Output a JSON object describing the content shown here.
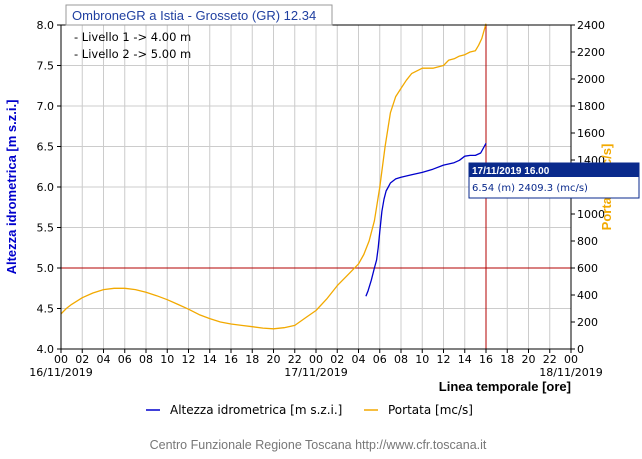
{
  "chart_data": {
    "type": "line",
    "title": "OmbroneGR a Istia - Grosseto (GR) 12.34",
    "annotations": [
      "- Livello 1 -> 4.00 m",
      "- Livello 2 -> 5.00 m"
    ],
    "xlabel": "Linea temporale [ore]",
    "ylabel": "Altezza idrometrica [m s.z.i.]",
    "ylabel_right": "Portata [mc/s]",
    "xlim": [
      0,
      48
    ],
    "ylim": [
      4.0,
      8.0
    ],
    "ylim_right": [
      0,
      2400
    ],
    "x_tick_labels": [
      "00",
      "02",
      "04",
      "06",
      "08",
      "10",
      "12",
      "14",
      "16",
      "18",
      "20",
      "22",
      "00",
      "02",
      "04",
      "06",
      "08",
      "10",
      "12",
      "14",
      "16",
      "18",
      "20",
      "22",
      "00"
    ],
    "date_labels": [
      {
        "x": 0,
        "text": "16/11/2019"
      },
      {
        "x": 24,
        "text": "17/11/2019"
      },
      {
        "x": 48,
        "text": "18/11/2019"
      }
    ],
    "y_ticks": [
      4.0,
      4.5,
      5.0,
      5.5,
      6.0,
      6.5,
      7.0,
      7.5,
      8.0
    ],
    "y_ticks_right": [
      0,
      200,
      400,
      600,
      800,
      1000,
      1200,
      1400,
      1600,
      1800,
      2000,
      2200,
      2400
    ],
    "grid": true,
    "reference_line_y": 5.0,
    "cursor_x": 40,
    "series": [
      {
        "name": "Altezza idrometrica [m s.z.i.]",
        "color": "#0000cc",
        "axis": "left",
        "points": [
          [
            28.7,
            4.65
          ],
          [
            28.9,
            4.72
          ],
          [
            29.2,
            4.85
          ],
          [
            29.5,
            5.0
          ],
          [
            29.7,
            5.1
          ],
          [
            29.85,
            5.25
          ],
          [
            30.0,
            5.45
          ],
          [
            30.2,
            5.7
          ],
          [
            30.4,
            5.85
          ],
          [
            30.6,
            5.95
          ],
          [
            30.8,
            6.0
          ],
          [
            31.0,
            6.05
          ],
          [
            31.5,
            6.1
          ],
          [
            32.0,
            6.12
          ],
          [
            33.0,
            6.15
          ],
          [
            34.0,
            6.18
          ],
          [
            35.0,
            6.22
          ],
          [
            36.0,
            6.27
          ],
          [
            37.0,
            6.3
          ],
          [
            37.5,
            6.33
          ],
          [
            38.0,
            6.38
          ],
          [
            38.5,
            6.39
          ],
          [
            39.0,
            6.39
          ],
          [
            39.5,
            6.42
          ],
          [
            40.0,
            6.54
          ]
        ]
      },
      {
        "name": "Portata [mc/s]",
        "color": "#f2a900",
        "axis": "right",
        "points": [
          [
            0,
            260
          ],
          [
            0.5,
            300
          ],
          [
            1,
            330
          ],
          [
            2,
            380
          ],
          [
            3,
            415
          ],
          [
            4,
            440
          ],
          [
            5,
            450
          ],
          [
            6,
            450
          ],
          [
            7,
            440
          ],
          [
            8,
            420
          ],
          [
            9,
            395
          ],
          [
            10,
            365
          ],
          [
            11,
            330
          ],
          [
            12,
            295
          ],
          [
            13,
            255
          ],
          [
            14,
            225
          ],
          [
            15,
            200
          ],
          [
            16,
            185
          ],
          [
            17,
            175
          ],
          [
            18,
            165
          ],
          [
            19,
            155
          ],
          [
            20,
            150
          ],
          [
            21,
            158
          ],
          [
            22,
            175
          ],
          [
            23,
            230
          ],
          [
            24,
            285
          ],
          [
            25,
            370
          ],
          [
            26,
            470
          ],
          [
            27,
            550
          ],
          [
            28,
            630
          ],
          [
            28.5,
            700
          ],
          [
            29,
            800
          ],
          [
            29.5,
            950
          ],
          [
            30,
            1200
          ],
          [
            30.5,
            1500
          ],
          [
            31,
            1750
          ],
          [
            31.5,
            1870
          ],
          [
            32,
            1930
          ],
          [
            32.5,
            1990
          ],
          [
            33,
            2040
          ],
          [
            34,
            2080
          ],
          [
            35,
            2080
          ],
          [
            36,
            2100
          ],
          [
            36.5,
            2140
          ],
          [
            37,
            2150
          ],
          [
            37.5,
            2170
          ],
          [
            38,
            2180
          ],
          [
            38.5,
            2200
          ],
          [
            39,
            2210
          ],
          [
            39.3,
            2250
          ],
          [
            39.6,
            2300
          ],
          [
            40,
            2409.3
          ]
        ]
      }
    ]
  },
  "tooltip": {
    "header": "17/11/2019 16.00",
    "body": "6.54 (m) 2409.3 (mc/s)"
  },
  "legend": {
    "items": [
      {
        "label": "Altezza idrometrica [m s.z.i.]",
        "color": "#0000cc"
      },
      {
        "label": "Portata [mc/s]",
        "color": "#f2a900"
      }
    ]
  },
  "footer": "Centro Funzionale Regione Toscana http://www.cfr.toscana.it",
  "colors": {
    "grid": "#cccccc",
    "reference_line": "#b30000",
    "title_text": "#1f3fa0",
    "left_axis_label": "#0000cc",
    "right_axis_label": "#f2a900",
    "tooltip_header_bg": "#0a2a8c"
  }
}
